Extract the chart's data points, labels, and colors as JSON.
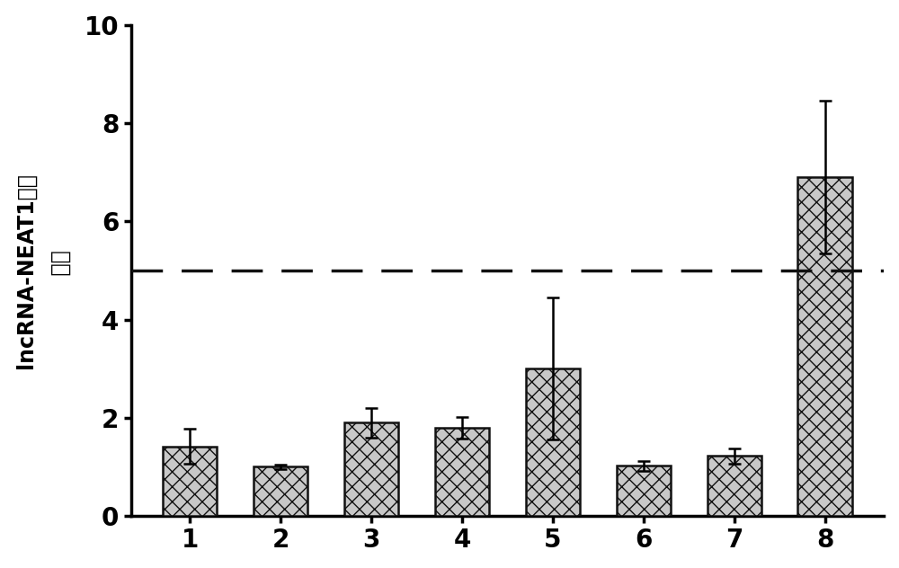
{
  "categories": [
    1,
    2,
    3,
    4,
    5,
    6,
    7,
    8
  ],
  "values": [
    1.42,
    1.0,
    1.9,
    1.8,
    3.0,
    1.02,
    1.22,
    6.9
  ],
  "errors": [
    0.35,
    0.05,
    0.3,
    0.22,
    1.45,
    0.1,
    0.15,
    1.55
  ],
  "dashed_line_y": 5.0,
  "ylabel_line1": "lncRNA-NEAT1相对",
  "ylabel_line2": "含量",
  "ylim": [
    0,
    10
  ],
  "yticks": [
    0,
    2,
    4,
    6,
    8,
    10
  ],
  "bar_color": "#c8c8c8",
  "bar_edgecolor": "#111111",
  "hatch_pattern": "xx",
  "dashed_line_color": "#111111",
  "background_color": "#ffffff",
  "bar_width": 0.6,
  "figsize": [
    10.0,
    6.32
  ],
  "dpi": 100
}
